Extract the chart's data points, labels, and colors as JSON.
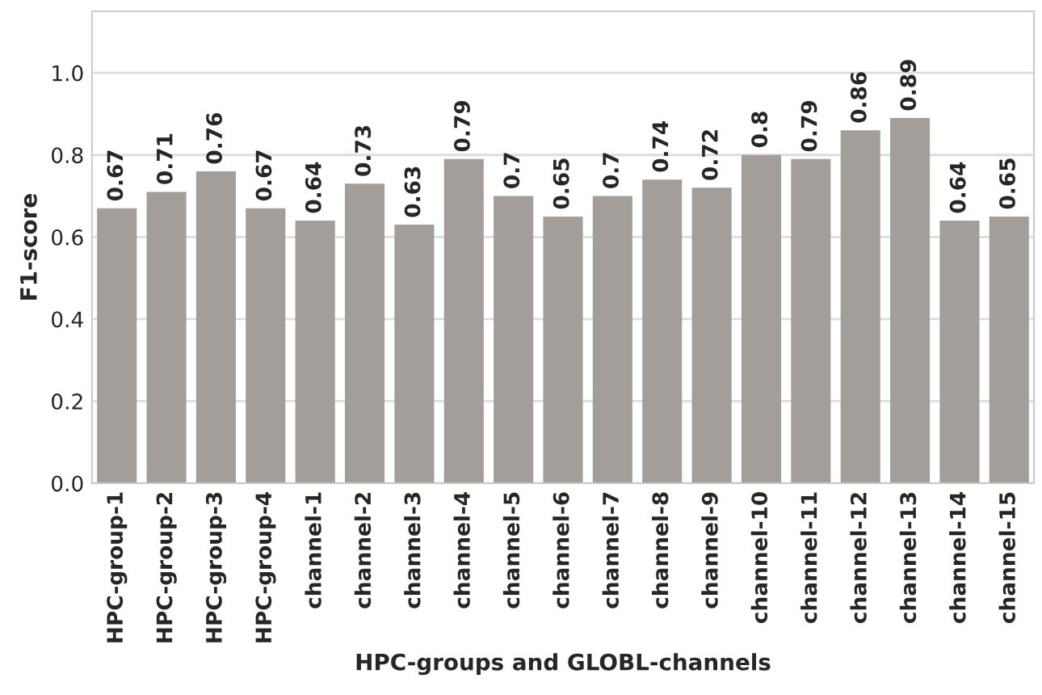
{
  "chart_data": {
    "type": "bar",
    "xlabel": "HPC-groups and GLOBL-channels",
    "ylabel": "F1-score",
    "categories": [
      "HPC-group-1",
      "HPC-group-2",
      "HPC-group-3",
      "HPC-group-4",
      "channel-1",
      "channel-2",
      "channel-3",
      "channel-4",
      "channel-5",
      "channel-6",
      "channel-7",
      "channel-8",
      "channel-9",
      "channel-10",
      "channel-11",
      "channel-12",
      "channel-13",
      "channel-14",
      "channel-15"
    ],
    "values": [
      0.67,
      0.71,
      0.76,
      0.67,
      0.64,
      0.73,
      0.63,
      0.79,
      0.7,
      0.65,
      0.7,
      0.74,
      0.72,
      0.8,
      0.79,
      0.86,
      0.89,
      0.64,
      0.65
    ],
    "color": "#a39e99",
    "ylim": [
      0,
      1.15
    ],
    "yticks": [
      {
        "value": 0,
        "label": "0.0"
      },
      0.2,
      0.4,
      0.6,
      0.8,
      {
        "value": 1,
        "label": "1.0"
      }
    ],
    "grid": "y",
    "data_labels": true
  }
}
